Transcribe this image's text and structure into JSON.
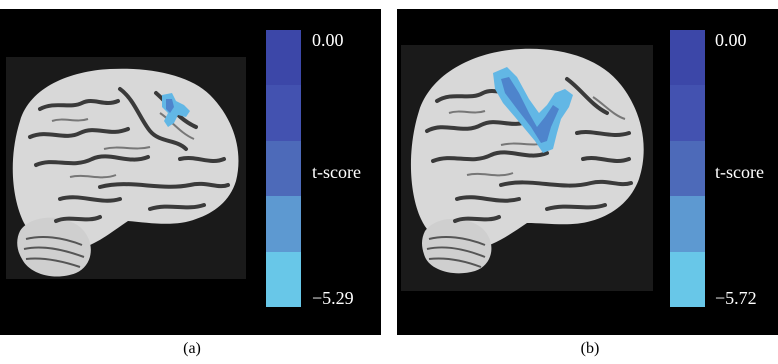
{
  "panels": [
    {
      "caption": "(a)",
      "colorbar": {
        "max_label": "0.00",
        "title": "t-score",
        "min_label": "−5.29",
        "colors": [
          "#3c47a8",
          "#4352b0",
          "#4d6ab9",
          "#5d99d1",
          "#68c7e8"
        ]
      }
    },
    {
      "caption": "(b)",
      "colorbar": {
        "max_label": "0.00",
        "title": "t-score",
        "min_label": "−5.72",
        "colors": [
          "#3c47a8",
          "#4352b0",
          "#4d6ab9",
          "#5d99d1",
          "#68c7e8"
        ]
      }
    }
  ],
  "colors": {
    "background": "#000000",
    "brain_tissue": "#d9d9d9",
    "sulci": "#3a3a3a",
    "activation_light": "#6fc6ea",
    "activation_mid": "#4e84cc"
  }
}
